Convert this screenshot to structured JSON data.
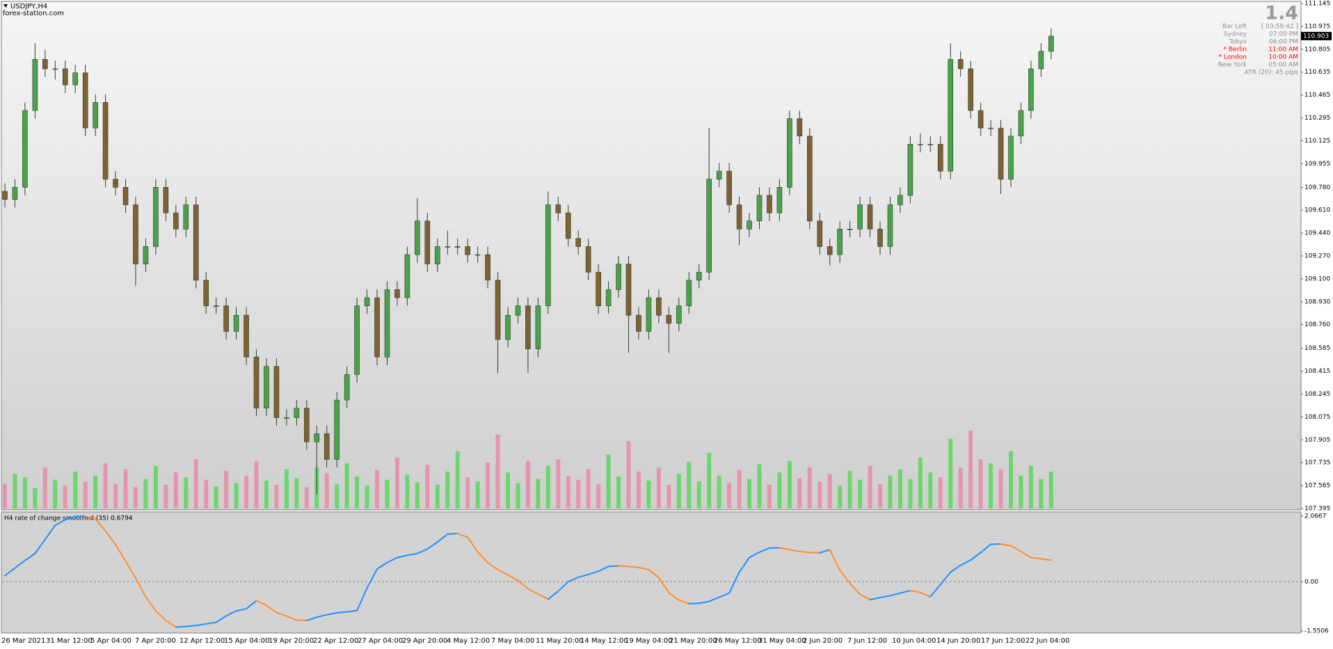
{
  "header": {
    "symbol": "USDJPY,H4",
    "source": "forex-station.com"
  },
  "info": {
    "title": "1.4",
    "rows": [
      {
        "label": "Bar Left",
        "value": "[ 03:59:42 ]",
        "color": "#8c8c8c"
      },
      {
        "label": "Sydney",
        "value": "07:00 PM",
        "color": "#8c8c8c"
      },
      {
        "label": "Tokyo",
        "value": "06:00 PM",
        "color": "#8c8c8c"
      },
      {
        "label": "* Berlin",
        "value": "11:00 AM",
        "color": "#ff0000"
      },
      {
        "label": "* London",
        "value": "10:00 AM",
        "color": "#ff0000"
      },
      {
        "label": "New York",
        "value": "05:00 AM",
        "color": "#8c8c8c"
      }
    ],
    "atr": "ATR (20): 45 pips"
  },
  "time_axis": {
    "labels": [
      "26 Mar 2021",
      "31 Mar 12:00",
      "5 Apr 04:00",
      "7 Apr 20:00",
      "12 Apr 12:00",
      "15 Apr 04:00",
      "19 Apr 20:00",
      "22 Apr 12:00",
      "27 Apr 04:00",
      "29 Apr 20:00",
      "4 May 12:00",
      "7 May 04:00",
      "11 May 20:00",
      "14 May 12:00",
      "19 May 04:00",
      "21 May 20:00",
      "26 May 12:00",
      "31 May 04:00",
      "2 Jun 20:00",
      "7 Jun 12:00",
      "10 Jun 04:00",
      "14 Jun 20:00",
      "17 Jun 12:00",
      "22 Jun 04:00"
    ]
  },
  "chart_data": [
    {
      "type": "candlestick",
      "colors": {
        "up": "#4aa34a",
        "down": "#7d6233",
        "wick": "#2e3b2e"
      },
      "volume_colors": {
        "up": "#5cd65c",
        "down": "#e98aa8"
      },
      "ylim": [
        107.395,
        111.145
      ],
      "yticks": [
        111.145,
        110.975,
        110.805,
        110.635,
        110.465,
        110.295,
        110.125,
        109.955,
        {
          "value": 109.78,
          "label": "109.780"
        },
        {
          "value": 109.61,
          "label": "109.610"
        },
        {
          "value": 109.44,
          "label": "109.440"
        },
        {
          "value": 109.27,
          "label": "109.270"
        },
        {
          "value": 109.1,
          "label": "109.100"
        },
        {
          "value": 108.93,
          "label": "108.930"
        },
        {
          "value": 108.76,
          "label": "108.760"
        },
        108.585,
        108.415,
        108.245,
        108.075,
        107.905,
        107.735,
        107.565,
        107.395
      ],
      "open": [
        109.75,
        109.69,
        109.78,
        110.35,
        110.73,
        110.66,
        110.66,
        110.54,
        110.63,
        110.22,
        110.41,
        109.84,
        109.78,
        109.65,
        109.21,
        109.34,
        109.78,
        109.59,
        109.47,
        109.65,
        109.09,
        108.9,
        108.9,
        108.71,
        108.83,
        108.52,
        108.14,
        108.45,
        108.07,
        108.07,
        108.14,
        107.89,
        107.95,
        107.76,
        108.2,
        108.39,
        108.9,
        108.96,
        108.52,
        109.02,
        108.96,
        109.28,
        109.53,
        109.21,
        109.34,
        109.34,
        109.34,
        109.28,
        109.28,
        109.09,
        108.65,
        108.83,
        108.9,
        108.58,
        108.9,
        109.65,
        109.59,
        109.4,
        109.34,
        109.15,
        108.9,
        109.02,
        109.21,
        108.83,
        108.71,
        108.96,
        108.83,
        108.77,
        108.9,
        109.09,
        109.15,
        109.84,
        109.9,
        109.65,
        109.47,
        109.53,
        109.72,
        109.59,
        109.78,
        110.29,
        110.16,
        109.53,
        109.34,
        109.28,
        109.47,
        109.47,
        109.65,
        109.47,
        109.34,
        109.65,
        109.72,
        110.1,
        110.1,
        110.1,
        109.9,
        110.73,
        110.66,
        110.35,
        110.22,
        110.22,
        109.84,
        110.16,
        110.35,
        110.66,
        110.79
      ],
      "high": [
        109.81,
        109.84,
        110.41,
        110.85,
        110.8,
        110.72,
        110.72,
        110.69,
        110.69,
        110.47,
        110.47,
        109.9,
        109.84,
        109.71,
        109.4,
        109.84,
        109.84,
        109.65,
        109.71,
        109.71,
        109.15,
        108.96,
        108.96,
        108.89,
        108.89,
        108.58,
        108.51,
        108.51,
        108.13,
        108.2,
        108.2,
        108.01,
        108.01,
        108.26,
        108.45,
        108.96,
        109.02,
        109.02,
        109.08,
        109.08,
        109.34,
        109.7,
        109.59,
        109.4,
        109.46,
        109.4,
        109.4,
        109.34,
        109.34,
        109.15,
        108.89,
        108.96,
        108.96,
        108.96,
        109.75,
        109.71,
        109.65,
        109.46,
        109.4,
        109.21,
        109.08,
        109.27,
        109.27,
        108.89,
        109.02,
        109.02,
        108.89,
        108.96,
        109.15,
        109.21,
        110.22,
        109.96,
        109.96,
        109.71,
        109.59,
        109.78,
        109.78,
        109.84,
        110.35,
        110.35,
        110.22,
        109.59,
        109.4,
        109.53,
        109.53,
        109.71,
        109.71,
        109.53,
        109.71,
        109.78,
        110.16,
        110.18,
        110.16,
        110.16,
        110.85,
        110.79,
        110.72,
        110.41,
        110.28,
        110.28,
        110.22,
        110.41,
        110.72,
        110.85,
        110.96
      ],
      "low": [
        109.63,
        109.63,
        109.72,
        110.29,
        110.6,
        110.58,
        110.48,
        110.48,
        110.16,
        110.16,
        109.78,
        109.72,
        109.59,
        109.05,
        109.15,
        109.28,
        109.53,
        109.41,
        109.41,
        109.03,
        108.84,
        108.84,
        108.65,
        108.65,
        108.46,
        108.08,
        108.08,
        108.01,
        108.01,
        108.01,
        107.83,
        107.5,
        107.7,
        107.7,
        108.14,
        108.33,
        108.84,
        108.46,
        108.46,
        108.9,
        108.9,
        109.22,
        109.15,
        109.15,
        109.28,
        109.28,
        109.22,
        109.22,
        109.03,
        108.4,
        108.59,
        108.77,
        108.4,
        108.52,
        108.84,
        109.53,
        109.34,
        109.28,
        109.09,
        108.84,
        108.84,
        108.96,
        108.55,
        108.65,
        108.65,
        108.77,
        108.55,
        108.71,
        108.84,
        109.03,
        109.09,
        109.78,
        109.59,
        109.35,
        109.41,
        109.47,
        109.53,
        109.53,
        109.72,
        110.1,
        109.47,
        109.28,
        109.2,
        109.22,
        109.41,
        109.41,
        109.41,
        109.28,
        109.28,
        109.59,
        109.66,
        110.04,
        110.04,
        109.84,
        109.84,
        110.6,
        110.29,
        110.16,
        110.16,
        109.73,
        109.78,
        110.1,
        110.29,
        110.6,
        110.73
      ],
      "close": [
        109.69,
        109.78,
        110.35,
        110.73,
        110.66,
        110.66,
        110.54,
        110.63,
        110.22,
        110.41,
        109.84,
        109.78,
        109.65,
        109.21,
        109.34,
        109.78,
        109.59,
        109.47,
        109.65,
        109.09,
        108.9,
        108.9,
        108.71,
        108.83,
        108.52,
        108.14,
        108.45,
        108.07,
        108.07,
        108.14,
        107.89,
        107.95,
        107.76,
        108.2,
        108.39,
        108.9,
        108.96,
        108.52,
        109.02,
        108.96,
        109.28,
        109.53,
        109.21,
        109.34,
        109.34,
        109.34,
        109.28,
        109.28,
        109.09,
        108.65,
        108.83,
        108.9,
        108.58,
        108.9,
        109.65,
        109.59,
        109.4,
        109.34,
        109.15,
        108.9,
        109.02,
        109.21,
        108.83,
        108.71,
        108.96,
        108.83,
        108.77,
        108.9,
        109.09,
        109.15,
        109.84,
        109.9,
        109.65,
        109.47,
        109.53,
        109.72,
        109.59,
        109.78,
        110.29,
        110.16,
        109.53,
        109.34,
        109.28,
        109.47,
        109.47,
        109.65,
        109.47,
        109.34,
        109.65,
        109.72,
        110.1,
        110.1,
        110.1,
        109.9,
        110.73,
        110.66,
        110.35,
        110.22,
        110.22,
        109.84,
        110.16,
        110.35,
        110.66,
        110.79,
        110.903
      ],
      "volume": [
        30,
        42,
        38,
        25,
        50,
        35,
        28,
        45,
        33,
        40,
        55,
        30,
        48,
        26,
        36,
        52,
        29,
        44,
        38,
        60,
        35,
        27,
        46,
        31,
        40,
        58,
        34,
        29,
        48,
        37,
        26,
        50,
        43,
        30,
        55,
        39,
        28,
        47,
        35,
        62,
        41,
        32,
        53,
        29,
        45,
        70,
        38,
        33,
        56,
        90,
        44,
        31,
        58,
        36,
        52,
        60,
        40,
        35,
        48,
        30,
        66,
        39,
        82,
        45,
        34,
        50,
        29,
        42,
        57,
        33,
        68,
        40,
        31,
        47,
        36,
        54,
        29,
        44,
        58,
        37,
        50,
        33,
        42,
        28,
        46,
        35,
        52,
        30,
        40,
        48,
        36,
        62,
        44,
        38,
        85,
        50,
        95,
        60,
        55,
        48,
        70,
        40,
        52,
        36,
        45
      ]
    },
    {
      "type": "line",
      "title": "H4 rate of change smoothed (35) 0.6794",
      "colors": {
        "up": "#1e90ff",
        "down": "#ff8c2a"
      },
      "ylim": [
        -1.5506,
        2.0667
      ],
      "yticks": [
        2.0667,
        {
          "value": 0,
          "label": "0.00"
        },
        -1.5506
      ],
      "levels": [
        0
      ],
      "values": [
        0.19,
        0.43,
        0.67,
        0.89,
        1.33,
        1.78,
        1.95,
        2.06,
        2.06,
        1.98,
        1.6,
        1.17,
        0.65,
        0.11,
        -0.48,
        -0.92,
        -1.22,
        -1.43,
        -1.41,
        -1.38,
        -1.33,
        -1.28,
        -1.08,
        -0.92,
        -0.85,
        -0.6,
        -0.75,
        -0.97,
        -1.08,
        -1.21,
        -1.22,
        -1.12,
        -1.04,
        -0.98,
        -0.95,
        -0.91,
        -0.2,
        0.4,
        0.6,
        0.76,
        0.83,
        0.89,
        1.03,
        1.25,
        1.5,
        1.52,
        1.4,
        0.94,
        0.6,
        0.38,
        0.22,
        0.04,
        -0.22,
        -0.39,
        -0.55,
        -0.3,
        0.0,
        0.14,
        0.23,
        0.33,
        0.48,
        0.5,
        0.48,
        0.45,
        0.38,
        0.13,
        -0.35,
        -0.58,
        -0.69,
        -0.68,
        -0.62,
        -0.49,
        -0.36,
        0.3,
        0.76,
        0.93,
        1.06,
        1.07,
        1.01,
        0.95,
        0.92,
        0.91,
        1.01,
        0.36,
        -0.05,
        -0.4,
        -0.57,
        -0.5,
        -0.44,
        -0.36,
        -0.28,
        -0.34,
        -0.47,
        -0.09,
        0.3,
        0.52,
        0.68,
        0.92,
        1.18,
        1.19,
        1.13,
        0.96,
        0.76,
        0.72,
        0.6794
      ]
    }
  ]
}
